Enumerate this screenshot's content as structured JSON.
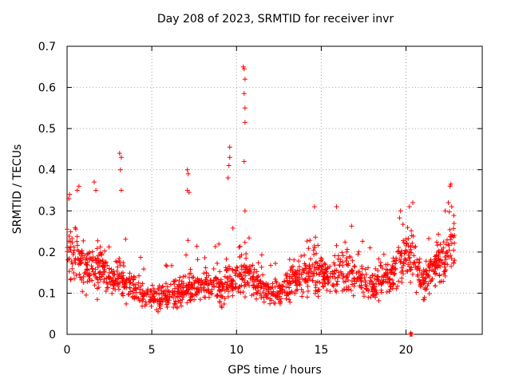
{
  "chart_data": {
    "type": "scatter",
    "title": "Day 208 of 2023, SRMTID for receiver invr",
    "xlabel": "GPS time / hours",
    "ylabel": "SRMTID / TECUs",
    "xlim": [
      0,
      24.5
    ],
    "ylim": [
      0,
      0.7
    ],
    "xticks": [
      0,
      5,
      10,
      15,
      20
    ],
    "yticks": [
      0,
      0.1,
      0.2,
      0.3,
      0.4,
      0.5,
      0.6,
      0.7
    ],
    "ytick_labels": [
      "0",
      "0.1",
      "0.2",
      "0.3",
      "0.4",
      "0.5",
      "0.6",
      "0.7"
    ],
    "grid": true,
    "marker": "+",
    "color": "#ff0000",
    "trend": [
      [
        0.0,
        0.2
      ],
      [
        0.5,
        0.19
      ],
      [
        1.0,
        0.16
      ],
      [
        1.5,
        0.15
      ],
      [
        2.0,
        0.17
      ],
      [
        2.5,
        0.14
      ],
      [
        3.0,
        0.13
      ],
      [
        3.5,
        0.12
      ],
      [
        4.0,
        0.11
      ],
      [
        4.5,
        0.1
      ],
      [
        5.0,
        0.09
      ],
      [
        5.5,
        0.09
      ],
      [
        6.0,
        0.095
      ],
      [
        6.5,
        0.1
      ],
      [
        7.0,
        0.12
      ],
      [
        7.5,
        0.11
      ],
      [
        8.0,
        0.12
      ],
      [
        8.5,
        0.12
      ],
      [
        9.0,
        0.11
      ],
      [
        9.5,
        0.12
      ],
      [
        10.0,
        0.14
      ],
      [
        10.5,
        0.15
      ],
      [
        11.0,
        0.13
      ],
      [
        11.5,
        0.11
      ],
      [
        12.0,
        0.1
      ],
      [
        12.5,
        0.1
      ],
      [
        13.0,
        0.12
      ],
      [
        13.5,
        0.13
      ],
      [
        14.0,
        0.14
      ],
      [
        14.5,
        0.16
      ],
      [
        15.0,
        0.15
      ],
      [
        15.5,
        0.13
      ],
      [
        16.0,
        0.15
      ],
      [
        16.5,
        0.15
      ],
      [
        17.0,
        0.14
      ],
      [
        17.5,
        0.13
      ],
      [
        18.0,
        0.12
      ],
      [
        18.5,
        0.13
      ],
      [
        19.0,
        0.14
      ],
      [
        19.5,
        0.16
      ],
      [
        20.0,
        0.2
      ],
      [
        20.5,
        0.18
      ],
      [
        21.0,
        0.13
      ],
      [
        21.5,
        0.15
      ],
      [
        22.0,
        0.17
      ],
      [
        22.5,
        0.19
      ],
      [
        22.9,
        0.2
      ]
    ],
    "spikes": [
      [
        0.1,
        0.33
      ],
      [
        0.15,
        0.34
      ],
      [
        0.6,
        0.35
      ],
      [
        0.7,
        0.36
      ],
      [
        1.6,
        0.37
      ],
      [
        1.7,
        0.35
      ],
      [
        3.1,
        0.44
      ],
      [
        3.2,
        0.43
      ],
      [
        3.15,
        0.4
      ],
      [
        3.2,
        0.35
      ],
      [
        7.1,
        0.4
      ],
      [
        7.15,
        0.39
      ],
      [
        7.1,
        0.35
      ],
      [
        7.2,
        0.345
      ],
      [
        9.6,
        0.455
      ],
      [
        9.6,
        0.43
      ],
      [
        9.55,
        0.41
      ],
      [
        9.5,
        0.38
      ],
      [
        10.4,
        0.65
      ],
      [
        10.45,
        0.645
      ],
      [
        10.5,
        0.62
      ],
      [
        10.45,
        0.585
      ],
      [
        10.5,
        0.55
      ],
      [
        10.5,
        0.515
      ],
      [
        10.45,
        0.42
      ],
      [
        10.5,
        0.3
      ],
      [
        14.6,
        0.31
      ],
      [
        15.9,
        0.31
      ],
      [
        20.2,
        0.31
      ],
      [
        20.4,
        0.32
      ],
      [
        22.6,
        0.36
      ],
      [
        22.65,
        0.365
      ],
      [
        22.5,
        0.32
      ],
      [
        22.7,
        0.31
      ]
    ],
    "low_points": [
      [
        20.25,
        0.0
      ],
      [
        20.3,
        0.0
      ],
      [
        20.35,
        0.0
      ],
      [
        20.28,
        0.003
      ]
    ]
  }
}
